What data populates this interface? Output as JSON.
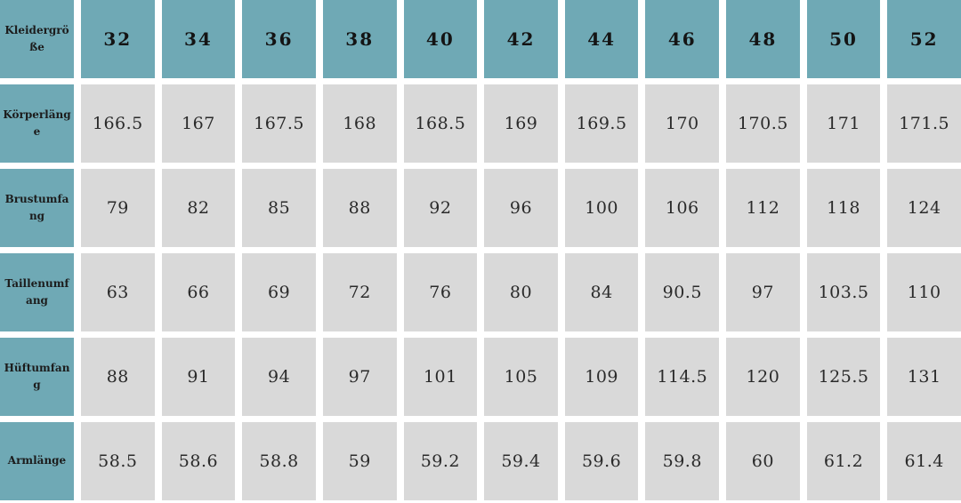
{
  "chart_data": {
    "type": "table",
    "corner_label": "Kleidergröße",
    "sizes": [
      "32",
      "34",
      "36",
      "38",
      "40",
      "42",
      "44",
      "46",
      "48",
      "50",
      "52"
    ],
    "rows": [
      {
        "label": "Körperlänge",
        "values": [
          "166.5",
          "167",
          "167.5",
          "168",
          "168.5",
          "169",
          "169.5",
          "170",
          "170.5",
          "171",
          "171.5"
        ]
      },
      {
        "label": "Brustumfang",
        "values": [
          "79",
          "82",
          "85",
          "88",
          "92",
          "96",
          "100",
          "106",
          "112",
          "118",
          "124"
        ]
      },
      {
        "label": "Taillenumfang",
        "values": [
          "63",
          "66",
          "69",
          "72",
          "76",
          "80",
          "84",
          "90.5",
          "97",
          "103.5",
          "110"
        ]
      },
      {
        "label": "Hüftumfang",
        "values": [
          "88",
          "91",
          "94",
          "97",
          "101",
          "105",
          "109",
          "114.5",
          "120",
          "125.5",
          "131"
        ]
      },
      {
        "label": "Armlänge",
        "values": [
          "58.5",
          "58.6",
          "58.8",
          "59",
          "59.2",
          "59.4",
          "59.6",
          "59.8",
          "60",
          "61.2",
          "61.4"
        ]
      }
    ]
  },
  "colors": {
    "header_bg": "#6fa9b5",
    "cell_bg": "#d9d9d9",
    "header_text": "#141414",
    "value_text": "#2a2a2a"
  }
}
